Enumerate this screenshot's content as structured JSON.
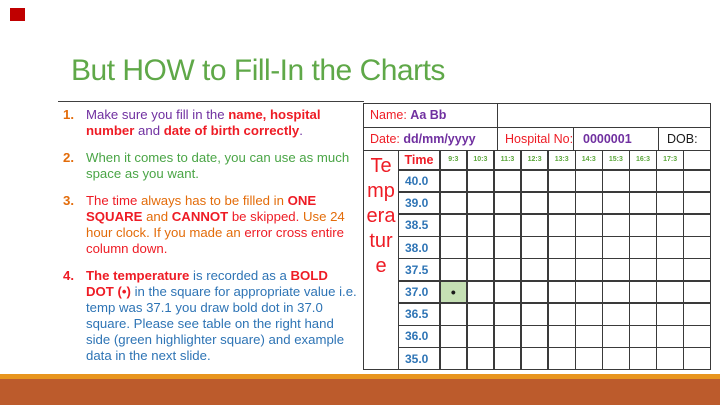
{
  "slide": {
    "title": "But HOW to Fill-In the Charts",
    "colors": {
      "title_green": "#5fa848",
      "accent_square_red": "#c00000",
      "footer_strip_orange": "#e8951d",
      "footer_band_rust": "#bc5b2c",
      "highlight_green": "#c5e0b4",
      "text_purple": "#7030a0",
      "text_orange": "#e36c0a",
      "text_red": "#ee1c25",
      "text_blue": "#2e74b5",
      "text_green": "#4aa546"
    }
  },
  "list": {
    "items": [
      {
        "number": "1.",
        "segments": [
          {
            "text": "Make sure you fill in the "
          },
          {
            "text": "name, hospital number"
          },
          {
            "text": " and "
          },
          {
            "text": "date of birth correctly"
          },
          {
            "text": "."
          }
        ]
      },
      {
        "number": "2.",
        "segments": [
          {
            "text": "When it comes to date, you can use as much space as you want."
          }
        ]
      },
      {
        "number": "3.",
        "segments": [
          {
            "text": "The time "
          },
          {
            "text": "always has to be filled in "
          },
          {
            "text": "ONE SQUARE"
          },
          {
            "text": " and "
          },
          {
            "text": "CANNOT"
          },
          {
            "text": " be skipped. "
          },
          {
            "text": "Use 24 hour clock. If you made an "
          },
          {
            "text": "error cross entire column down."
          }
        ]
      },
      {
        "number": "4.",
        "segments": [
          {
            "text": "The temperature"
          },
          {
            "text": " is recorded as a "
          },
          {
            "text": "BOLD DOT (•)"
          },
          {
            "text": " in the square for appropriate value i.e. temp was 37.1 you draw bold dot in 37.0 square. Please see table on the right hand side (green highlighter square) and example data in the next slide."
          }
        ]
      }
    ]
  },
  "table": {
    "name_label": "Name: ",
    "name_value": "Aa Bb",
    "date_label": "Date: ",
    "date_value": "dd/mm/yyyy",
    "hospital_label": "Hospital No:",
    "hospital_value": "0000001",
    "dob_label": "DOB:",
    "time_header": "Time",
    "temperature_lines": [
      "Te",
      "mp",
      "era",
      "tur",
      "e"
    ],
    "times": [
      "9:3",
      "10:3",
      "11:3",
      "12:3",
      "13:3",
      "14:3",
      "15:3",
      "16:3",
      "17:3"
    ],
    "temps": [
      "40.0",
      "39.0",
      "38.5",
      "38.0",
      "37.5",
      "37.0",
      "36.5",
      "36.0",
      "35.0"
    ],
    "dot_glyph": "•",
    "highlight": {
      "row_temp": "37.0",
      "col_time": "9:3"
    }
  }
}
